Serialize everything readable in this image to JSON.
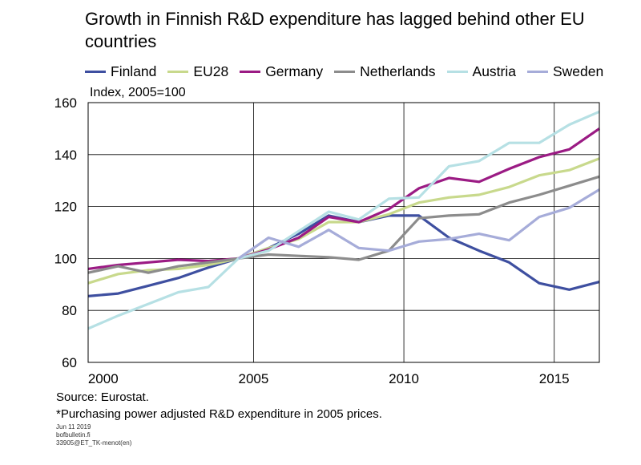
{
  "chart_data": {
    "type": "line",
    "title": "Growth in Finnish R&D expenditure has lagged behind other EU countries",
    "unit_label": "Index, 2005=100",
    "ylim": [
      60,
      160
    ],
    "yticks": [
      60,
      80,
      100,
      120,
      140,
      160
    ],
    "xlim": [
      1999.5,
      2016.5
    ],
    "xticks": [
      2000,
      2005,
      2010,
      2015
    ],
    "xgrid": [
      2005,
      2010,
      2015
    ],
    "grid": true,
    "legend_position": "top",
    "x": [
      1999.5,
      2000.5,
      2001.5,
      2002.5,
      2003.5,
      2004.5,
      2005.5,
      2006.5,
      2007.5,
      2008.5,
      2009.5,
      2010.5,
      2011.5,
      2012.5,
      2013.5,
      2014.5,
      2015.5,
      2016.5
    ],
    "series": [
      {
        "name": "Finland",
        "color": "#3e4fa0",
        "values": [
          85.5,
          86.5,
          89.5,
          92.5,
          96.5,
          100,
          104,
          109.5,
          116.5,
          114,
          116.5,
          116.5,
          108,
          103,
          98.5,
          90.5,
          88,
          91
        ]
      },
      {
        "name": "EU28",
        "color": "#c8d98c",
        "values": [
          90.5,
          94,
          95.5,
          96,
          97.5,
          100,
          104,
          107.5,
          114,
          114,
          117,
          121.5,
          123.5,
          124.5,
          127.5,
          132,
          134,
          138.5
        ]
      },
      {
        "name": "Germany",
        "color": "#9b1b84",
        "values": [
          96,
          97.5,
          98.5,
          99.5,
          99,
          100,
          103.5,
          108,
          116,
          114,
          119,
          127,
          131,
          129.5,
          134.5,
          139,
          142,
          150
        ]
      },
      {
        "name": "Netherlands",
        "color": "#8c8c8c",
        "values": [
          94.5,
          97,
          94.5,
          97,
          98.5,
          100,
          101.5,
          101,
          100.5,
          99.5,
          103,
          115.5,
          116.5,
          117,
          121.5,
          124.5,
          128,
          131.5
        ]
      },
      {
        "name": "Austria",
        "color": "#b6e0e4",
        "values": [
          73,
          78,
          82.5,
          87,
          89,
          100,
          103,
          110.5,
          118,
          115,
          123,
          123.5,
          135.5,
          137.5,
          144.5,
          144.5,
          151.5,
          156.5
        ]
      },
      {
        "name": "Sweden",
        "color": "#a6acd9",
        "values": [
          null,
          null,
          null,
          null,
          null,
          100,
          108,
          104.5,
          111,
          104,
          103,
          106.5,
          107.5,
          109.5,
          107,
          116,
          119.5,
          126.5
        ]
      }
    ]
  },
  "footer": {
    "source": "Source: Eurostat.",
    "note": "*Purchasing power adjusted R&D expenditure in 2005 prices.",
    "meta_date": "Jun 11 2019",
    "meta_site": "bofbulletin.fi",
    "meta_code": "33905@ET_TK-menot(en)"
  }
}
